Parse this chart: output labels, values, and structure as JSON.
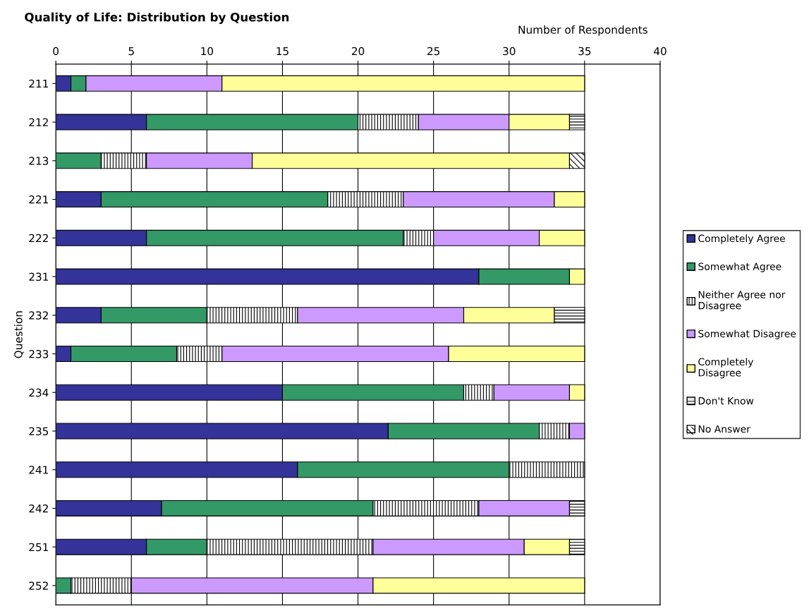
{
  "chart_data": {
    "type": "bar",
    "orientation": "horizontal",
    "stacked": true,
    "title": "Quality of Life: Distribution by Question",
    "xlabel": "Number of Respondents",
    "ylabel": "Question",
    "categories": [
      "211",
      "212",
      "213",
      "221",
      "222",
      "231",
      "232",
      "233",
      "234",
      "235",
      "241",
      "242",
      "251",
      "252"
    ],
    "xlim": [
      0,
      40
    ],
    "xticks": [
      0,
      5,
      10,
      15,
      20,
      25,
      30,
      35,
      40
    ],
    "grid": "x",
    "legend": "right",
    "series": [
      {
        "name": "Completely Agree",
        "color": "#333399",
        "values": [
          1,
          6,
          0,
          3,
          6,
          28,
          3,
          1,
          15,
          22,
          16,
          7,
          6,
          0
        ]
      },
      {
        "name": "Somewhat Agree",
        "color": "#339966",
        "values": [
          1,
          14,
          3,
          15,
          17,
          6,
          7,
          7,
          12,
          10,
          14,
          14,
          4,
          1
        ]
      },
      {
        "name": "Neither Agree nor\nDisagree",
        "color": "#ffffff",
        "values": [
          0,
          4,
          3,
          5,
          2,
          0,
          6,
          3,
          2,
          2,
          5,
          7,
          11,
          4
        ]
      },
      {
        "name": "Somewhat Disagree",
        "color": "#cc99ff",
        "values": [
          9,
          6,
          7,
          10,
          7,
          0,
          11,
          15,
          5,
          1,
          0,
          6,
          10,
          16
        ]
      },
      {
        "name": "Completely\nDisagree",
        "color": "#ffff99",
        "values": [
          24,
          4,
          21,
          2,
          3,
          1,
          6,
          9,
          1,
          0,
          0,
          0,
          3,
          14
        ]
      },
      {
        "name": "Don't Know",
        "color": "#ffffff",
        "values": [
          0,
          1,
          0,
          0,
          0,
          0,
          2,
          0,
          0,
          0,
          0,
          1,
          1,
          0
        ]
      },
      {
        "name": "No Answer",
        "color": "#ffffff",
        "values": [
          0,
          0,
          1,
          0,
          0,
          0,
          0,
          0,
          0,
          0,
          0,
          0,
          0,
          0
        ]
      }
    ]
  }
}
